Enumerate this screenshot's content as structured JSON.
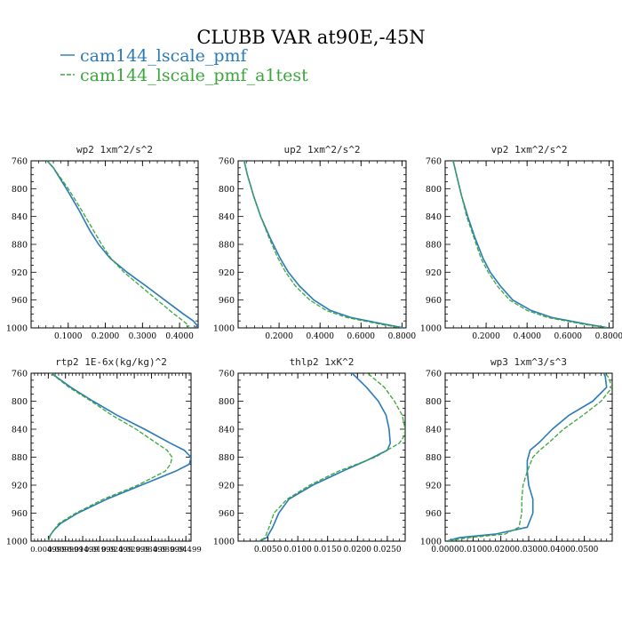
{
  "figure": {
    "title": "CLUBB VAR at90E,-45N",
    "legend": [
      {
        "name": "cam144_lscale_pmf",
        "color": "#2a7ab8",
        "dash": false
      },
      {
        "name": "cam144_lscale_pmf_a1test",
        "color": "#3ba63b",
        "dash": true
      }
    ]
  },
  "chart_data": [
    {
      "type": "line",
      "title": "wp2  1xm^2/s^2",
      "xlim": [
        0,
        0.45
      ],
      "ylim": [
        760,
        1000
      ],
      "y_inverted": true,
      "xticks": [
        0.1,
        0.2,
        0.3,
        0.4
      ],
      "xtick_labels": [
        "0.1000",
        "0.2000",
        "0.3000",
        "0.4000"
      ],
      "yticks": [
        760,
        800,
        840,
        880,
        920,
        960,
        1000
      ],
      "series": [
        {
          "y": [
            755,
            770,
            800,
            830,
            860,
            880,
            900,
            920,
            940,
            960,
            980,
            990,
            997,
            1000
          ],
          "x": [
            0.035,
            0.06,
            0.095,
            0.128,
            0.158,
            0.182,
            0.213,
            0.258,
            0.31,
            0.36,
            0.41,
            0.437,
            0.448,
            0.44
          ]
        },
        {
          "y": [
            755,
            770,
            800,
            830,
            860,
            880,
            900,
            920,
            940,
            960,
            980,
            990,
            997,
            1000
          ],
          "x": [
            0.035,
            0.06,
            0.1,
            0.135,
            0.168,
            0.19,
            0.215,
            0.25,
            0.295,
            0.34,
            0.385,
            0.41,
            0.425,
            0.42
          ]
        }
      ]
    },
    {
      "type": "line",
      "title": "up2  1xm^2/s^2",
      "xlim": [
        0,
        0.82
      ],
      "ylim": [
        760,
        1000
      ],
      "y_inverted": true,
      "xticks": [
        0.2,
        0.4,
        0.6,
        0.8
      ],
      "xtick_labels": [
        "0.2000",
        "0.4000",
        "0.6000",
        "0.8000"
      ],
      "yticks": [
        760,
        800,
        840,
        880,
        920,
        960,
        1000
      ],
      "series": [
        {
          "y": [
            755,
            780,
            810,
            840,
            870,
            900,
            920,
            940,
            960,
            975,
            985,
            995,
            1000
          ],
          "x": [
            0.025,
            0.045,
            0.075,
            0.11,
            0.155,
            0.205,
            0.245,
            0.3,
            0.37,
            0.45,
            0.55,
            0.72,
            0.81
          ]
        },
        {
          "y": [
            755,
            780,
            810,
            840,
            870,
            900,
            920,
            940,
            960,
            975,
            985,
            995,
            1000
          ],
          "x": [
            0.025,
            0.045,
            0.075,
            0.11,
            0.15,
            0.195,
            0.232,
            0.28,
            0.35,
            0.43,
            0.53,
            0.7,
            0.8
          ]
        }
      ]
    },
    {
      "type": "line",
      "title": "vp2  1xm^2/s^2",
      "xlim": [
        0,
        0.82
      ],
      "ylim": [
        760,
        1000
      ],
      "y_inverted": true,
      "xticks": [
        0.2,
        0.4,
        0.6,
        0.8
      ],
      "xtick_labels": [
        "0.2000",
        "0.4000",
        "0.6000",
        "0.8000"
      ],
      "yticks": [
        760,
        800,
        840,
        880,
        920,
        960,
        1000
      ],
      "series": [
        {
          "y": [
            755,
            780,
            810,
            840,
            870,
            900,
            920,
            940,
            960,
            975,
            985,
            995,
            1000
          ],
          "x": [
            0.035,
            0.055,
            0.08,
            0.11,
            0.145,
            0.185,
            0.22,
            0.27,
            0.33,
            0.42,
            0.52,
            0.7,
            0.8
          ]
        },
        {
          "y": [
            755,
            780,
            810,
            840,
            870,
            900,
            920,
            940,
            960,
            975,
            985,
            995,
            1000
          ],
          "x": [
            0.035,
            0.055,
            0.08,
            0.105,
            0.14,
            0.175,
            0.21,
            0.255,
            0.315,
            0.4,
            0.5,
            0.68,
            0.79
          ]
        }
      ]
    },
    {
      "type": "line",
      "title": "rtp2  1E-6x(kg/kg)^2",
      "xlim": [
        0,
        0.0465
      ],
      "ylim": [
        760,
        1000
      ],
      "y_inverted": true,
      "xticks": [
        0.005,
        0.01,
        0.015,
        0.02,
        0.025,
        0.03,
        0.035,
        0.04,
        0.045
      ],
      "xtick_labels": [
        "0.004999",
        "0.009999",
        "0.01499",
        "0.01999",
        "0.02499",
        "0.02999",
        "0.03499",
        "0.03999",
        "0.04499"
      ],
      "yticks": [
        760,
        800,
        840,
        880,
        920,
        960,
        1000
      ],
      "series": [
        {
          "y": [
            755,
            780,
            800,
            820,
            840,
            860,
            870,
            880,
            890,
            900,
            920,
            940,
            960,
            975,
            985,
            992,
            1000
          ],
          "x": [
            0.0045,
            0.0115,
            0.018,
            0.025,
            0.033,
            0.0405,
            0.0445,
            0.0465,
            0.046,
            0.042,
            0.032,
            0.022,
            0.0135,
            0.0085,
            0.0065,
            0.0055,
            0.005
          ]
        },
        {
          "y": [
            755,
            780,
            800,
            820,
            840,
            860,
            870,
            880,
            890,
            900,
            920,
            940,
            960,
            975,
            985,
            992,
            1000
          ],
          "x": [
            0.0045,
            0.011,
            0.0175,
            0.0235,
            0.0305,
            0.0365,
            0.0395,
            0.041,
            0.0405,
            0.039,
            0.031,
            0.021,
            0.013,
            0.008,
            0.0065,
            0.0055,
            0.005
          ]
        }
      ]
    },
    {
      "type": "line",
      "title": "thlp2  1xK^2",
      "xlim": [
        0,
        0.028
      ],
      "ylim": [
        760,
        1000
      ],
      "y_inverted": true,
      "xticks": [
        0.005,
        0.01,
        0.015,
        0.02,
        0.025
      ],
      "xtick_labels": [
        "0.0050",
        "0.0100",
        "0.0150",
        "0.0200",
        "0.0250"
      ],
      "yticks": [
        760,
        800,
        840,
        880,
        920,
        960,
        1000
      ],
      "series": [
        {
          "y": [
            755,
            780,
            800,
            820,
            840,
            860,
            870,
            885,
            900,
            920,
            940,
            960,
            980,
            995,
            1000
          ],
          "x": [
            0.0185,
            0.0215,
            0.0235,
            0.0248,
            0.0253,
            0.0255,
            0.025,
            0.0215,
            0.0175,
            0.0125,
            0.0085,
            0.0068,
            0.0058,
            0.0048,
            0.0035
          ]
        },
        {
          "y": [
            755,
            780,
            800,
            820,
            840,
            850,
            860,
            880,
            900,
            920,
            940,
            960,
            980,
            995,
            1000
          ],
          "x": [
            0.021,
            0.0245,
            0.0262,
            0.0275,
            0.028,
            0.0278,
            0.027,
            0.023,
            0.0168,
            0.012,
            0.0082,
            0.006,
            0.0052,
            0.0045,
            0.0035
          ]
        }
      ]
    },
    {
      "type": "line",
      "title": "wp3  1xm^3/s^3",
      "xlim": [
        0,
        0.06
      ],
      "ylim": [
        760,
        1000
      ],
      "y_inverted": true,
      "xticks": [
        0.0,
        0.01,
        0.02,
        0.03,
        0.04,
        0.05
      ],
      "xtick_labels": [
        "0.0000",
        "0.0100",
        "0.0200",
        "0.0300",
        "0.0400",
        "0.0500"
      ],
      "yticks": [
        760,
        800,
        840,
        880,
        920,
        960,
        1000
      ],
      "series": [
        {
          "y": [
            755,
            765,
            780,
            800,
            820,
            840,
            860,
            870,
            885,
            900,
            920,
            940,
            960,
            980,
            990,
            995,
            1000
          ],
          "x": [
            0.0565,
            0.0575,
            0.058,
            0.053,
            0.0445,
            0.0385,
            0.0335,
            0.0305,
            0.0295,
            0.0295,
            0.03,
            0.0315,
            0.0315,
            0.0295,
            0.018,
            0.005,
            0.0005
          ]
        },
        {
          "y": [
            755,
            765,
            780,
            800,
            820,
            840,
            860,
            870,
            880,
            900,
            920,
            940,
            960,
            980,
            990,
            995,
            1000
          ],
          "x": [
            0.056,
            0.0585,
            0.06,
            0.056,
            0.0495,
            0.0425,
            0.037,
            0.034,
            0.0315,
            0.0295,
            0.028,
            0.0275,
            0.0275,
            0.0265,
            0.0215,
            0.0085,
            0.0005
          ]
        }
      ]
    }
  ]
}
